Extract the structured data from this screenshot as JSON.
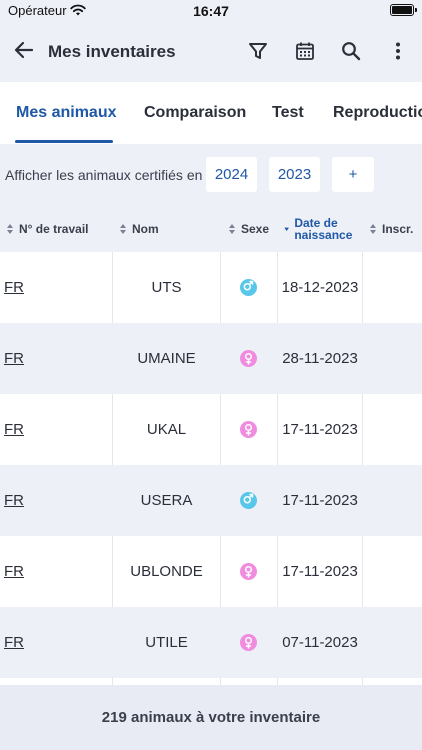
{
  "status_bar": {
    "carrier": "Opérateur",
    "time": "16:47"
  },
  "app_bar": {
    "title": "Mes inventaires",
    "icons": [
      "back-arrow-icon",
      "filter-icon",
      "calendar-icon",
      "search-icon",
      "more-vertical-icon"
    ]
  },
  "tabs": [
    {
      "label": "Mes animaux",
      "active": true
    },
    {
      "label": "Comparaison",
      "active": false
    },
    {
      "label": "Test",
      "active": false
    },
    {
      "label": "Reproduction",
      "active": false
    }
  ],
  "filter": {
    "label": "Afficher les animaux certifiés en",
    "years": [
      "2024",
      "2023"
    ],
    "add_label": "+"
  },
  "table": {
    "columns": [
      {
        "label": "N° de travail",
        "sorted": false
      },
      {
        "label": "Nom",
        "sorted": false
      },
      {
        "label": "Sexe",
        "sorted": false
      },
      {
        "label": "Date de naissance",
        "sorted": true
      },
      {
        "label": "Inscr.",
        "sorted": false
      }
    ],
    "rows": [
      {
        "work": "FR",
        "nom": "UTS",
        "sexe": "male",
        "date": "18-12-2023"
      },
      {
        "work": "FR",
        "nom": "UMAINE",
        "sexe": "female",
        "date": "28-11-2023"
      },
      {
        "work": "FR",
        "nom": "UKAL",
        "sexe": "female",
        "date": "17-11-2023"
      },
      {
        "work": "FR",
        "nom": "USERA",
        "sexe": "male",
        "date": "17-11-2023"
      },
      {
        "work": "FR",
        "nom": "UBLONDE",
        "sexe": "female",
        "date": "17-11-2023"
      },
      {
        "work": "FR",
        "nom": "UTILE",
        "sexe": "female",
        "date": "07-11-2023"
      }
    ]
  },
  "footer": {
    "summary": "219 animaux à votre inventaire"
  },
  "colors": {
    "accent": "#1f58a6",
    "background_light": "#eef0f7",
    "male": "#58c7ea",
    "female": "#f08ce0"
  }
}
